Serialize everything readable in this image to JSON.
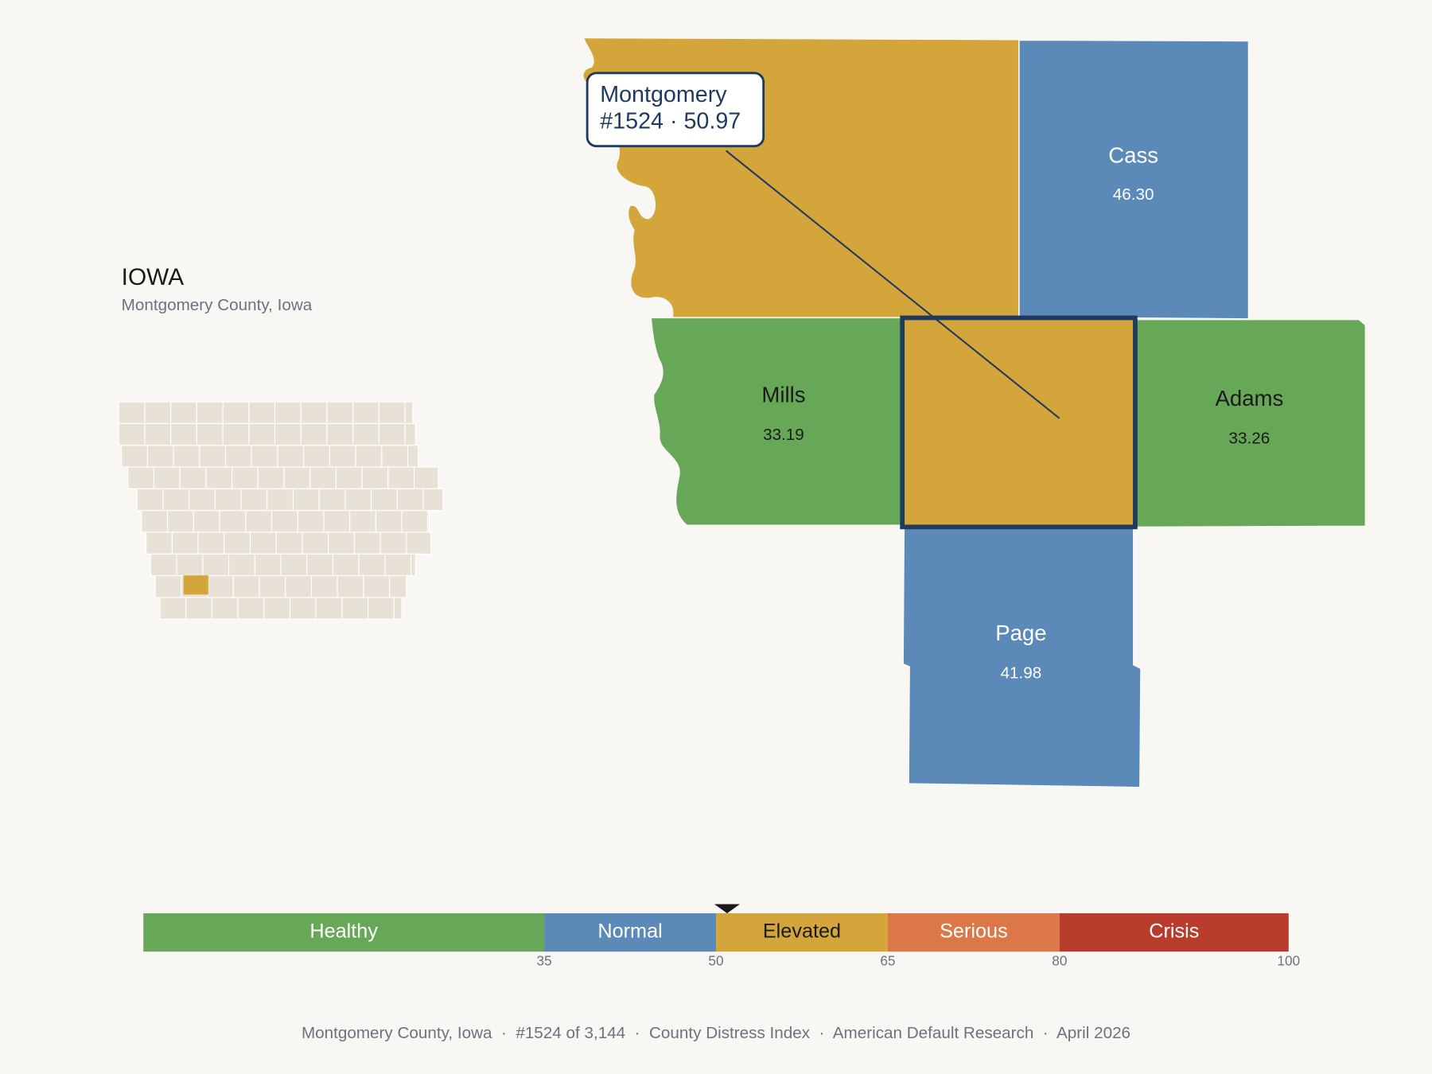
{
  "header": {
    "title": "IOWA",
    "subtitle": "Montgomery County, Iowa"
  },
  "callout": {
    "detail": "#1524 · 50.97"
  },
  "counties": [
    {
      "name": "Montgomery",
      "value": 50.97
    },
    {
      "name": "Cass",
      "value": 46.3,
      "value_label": "46.30"
    },
    {
      "name": "Mills",
      "value": 33.19,
      "value_label": "33.19"
    },
    {
      "name": "Adams",
      "value": 33.26,
      "value_label": "33.26"
    },
    {
      "name": "Page",
      "value": 41.98,
      "value_label": "41.98"
    }
  ],
  "scale": {
    "xlim": [
      0,
      100
    ],
    "ticks": [
      35,
      50,
      65,
      80,
      100
    ],
    "bands": [
      {
        "name": "Healthy",
        "color": "#67a758"
      },
      {
        "name": "Normal",
        "color": "#5b89b8"
      },
      {
        "name": "Elevated",
        "color": "#d4a53a"
      },
      {
        "name": "Serious",
        "color": "#dc7748"
      },
      {
        "name": "Crisis",
        "color": "#b83c2b"
      }
    ]
  },
  "footer": "Montgomery County, Iowa  ·  #1524 of 3,144  ·  County Distress Index  ·  American Default Research  ·  April 2026"
}
